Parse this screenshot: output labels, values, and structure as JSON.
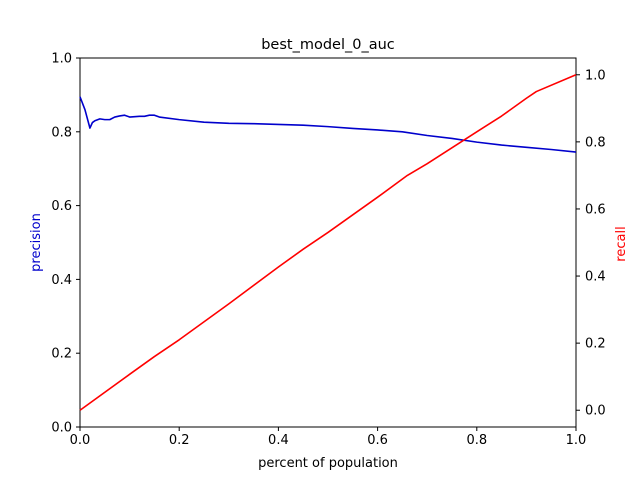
{
  "chart_data": {
    "type": "line",
    "title": "best_model_0_auc",
    "xlabel": "percent of population",
    "ylabel_left": "precision",
    "ylabel_right": "recall",
    "xlim": [
      0,
      1
    ],
    "ylim_left": [
      0,
      1
    ],
    "ylim_right": [
      -0.05,
      1.05
    ],
    "x_ticks": [
      0.0,
      0.2,
      0.4,
      0.6,
      0.8,
      1.0
    ],
    "x_tick_labels": [
      "0.0",
      "0.2",
      "0.4",
      "0.6",
      "0.8",
      "1.0"
    ],
    "y_left_ticks": [
      0.0,
      0.2,
      0.4,
      0.6,
      0.8,
      1.0
    ],
    "y_left_tick_labels": [
      "0.0",
      "0.2",
      "0.4",
      "0.6",
      "0.8",
      "1.0"
    ],
    "y_right_ticks": [
      0.0,
      0.2,
      0.4,
      0.6,
      0.8,
      1.0
    ],
    "y_right_tick_labels": [
      "0.0",
      "0.2",
      "0.4",
      "0.6",
      "0.8",
      "1.0"
    ],
    "grid": false,
    "colors": {
      "precision": "#0000cc",
      "recall": "#ff0000"
    },
    "series": [
      {
        "axis": "left",
        "color": "#0000cc",
        "x": [
          0.0,
          0.01,
          0.02,
          0.025,
          0.03,
          0.04,
          0.05,
          0.06,
          0.07,
          0.08,
          0.09,
          0.1,
          0.12,
          0.13,
          0.14,
          0.15,
          0.16,
          0.2,
          0.25,
          0.3,
          0.35,
          0.4,
          0.45,
          0.5,
          0.55,
          0.6,
          0.65,
          0.7,
          0.75,
          0.8,
          0.85,
          0.9,
          0.95,
          1.0
        ],
        "values": [
          0.895,
          0.86,
          0.81,
          0.825,
          0.83,
          0.835,
          0.833,
          0.833,
          0.84,
          0.843,
          0.845,
          0.84,
          0.842,
          0.842,
          0.845,
          0.845,
          0.84,
          0.833,
          0.826,
          0.823,
          0.822,
          0.82,
          0.818,
          0.814,
          0.809,
          0.805,
          0.8,
          0.79,
          0.782,
          0.772,
          0.764,
          0.758,
          0.752,
          0.745
        ]
      },
      {
        "axis": "right",
        "color": "#ff0000",
        "x": [
          0.0,
          0.1,
          0.15,
          0.2,
          0.3,
          0.4,
          0.45,
          0.5,
          0.6,
          0.66,
          0.7,
          0.8,
          0.85,
          0.9,
          0.92,
          1.0
        ],
        "values": [
          0.0,
          0.107,
          0.16,
          0.21,
          0.317,
          0.427,
          0.48,
          0.53,
          0.635,
          0.7,
          0.735,
          0.83,
          0.877,
          0.93,
          0.95,
          1.0
        ]
      }
    ]
  }
}
